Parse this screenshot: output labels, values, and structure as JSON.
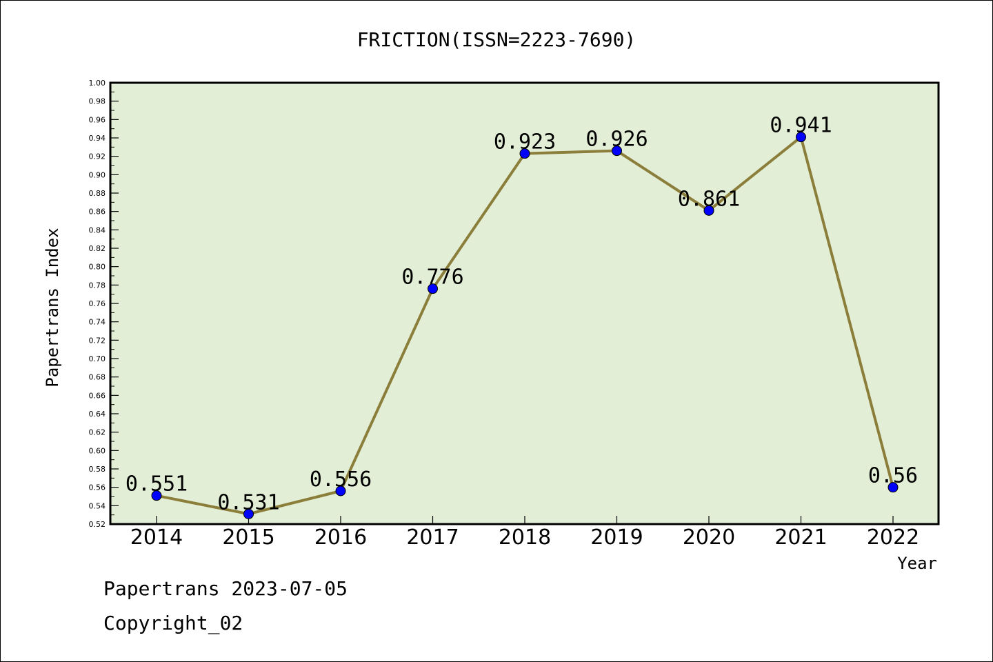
{
  "chart_data": {
    "type": "line",
    "title": "FRICTION(ISSN=2223-7690)",
    "xlabel": "Year",
    "ylabel": "Papertrans Index",
    "categories": [
      "2014",
      "2015",
      "2016",
      "2017",
      "2018",
      "2019",
      "2020",
      "2021",
      "2022"
    ],
    "series": [
      {
        "values": [
          0.551,
          0.531,
          0.556,
          0.776,
          0.923,
          0.926,
          0.861,
          0.941,
          0.56
        ],
        "labels": [
          "0.551",
          "0.531",
          "0.556",
          "0.776",
          "0.923",
          "0.926",
          "0.861",
          "0.941",
          "0.56"
        ],
        "line_color": "#8b7d3a",
        "marker_color": "#0000ff"
      }
    ],
    "ylim": [
      0.52,
      1.0
    ],
    "ytick_step": 0.02,
    "grid": false,
    "plot_background": "#e2efd6",
    "footer": [
      "Papertrans 2023-07-05",
      "Copyright_02"
    ]
  }
}
